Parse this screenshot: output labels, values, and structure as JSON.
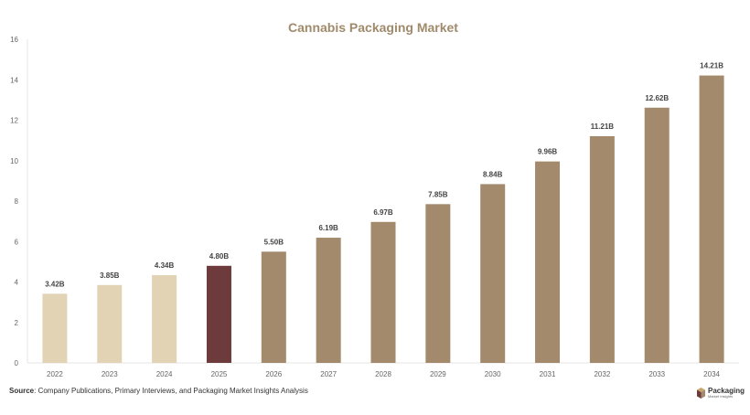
{
  "colors": {
    "title": "#a08a6b",
    "historical": "#e3d3b5",
    "base_year": "#6d3b3b",
    "forecast": "#a38a6c",
    "axis_text": "#666666",
    "label_text": "#444444",
    "axis_line": "#e6e6e6"
  },
  "chart_data": {
    "type": "bar",
    "title": "Cannabis Packaging Market",
    "xlabel": "",
    "ylabel": "",
    "categories": [
      "2022",
      "2023",
      "2024",
      "2025",
      "2026",
      "2027",
      "2028",
      "2029",
      "2030",
      "2031",
      "2032",
      "2033",
      "2034"
    ],
    "values": [
      3.42,
      3.85,
      4.34,
      4.8,
      5.5,
      6.19,
      6.97,
      7.85,
      8.84,
      9.96,
      11.21,
      12.62,
      14.21
    ],
    "data_labels": [
      "3.42B",
      "3.85B",
      "4.34B",
      "4.80B",
      "5.50B",
      "6.19B",
      "6.97B",
      "7.85B",
      "8.84B",
      "9.96B",
      "11.21B",
      "12.62B",
      "14.21B"
    ],
    "bar_color_groups": [
      "historical",
      "historical",
      "historical",
      "base_year",
      "forecast",
      "forecast",
      "forecast",
      "forecast",
      "forecast",
      "forecast",
      "forecast",
      "forecast",
      "forecast"
    ],
    "ylim": [
      0,
      16
    ],
    "yticks": [
      0,
      2,
      4,
      6,
      8,
      10,
      12,
      14,
      16
    ],
    "grid": false,
    "legend": "none"
  },
  "footer": {
    "source_label": "Source",
    "source_text": ": Company Publications, Primary Interviews, and Packaging Market Insights Analysis"
  },
  "logo": {
    "name": "Packaging",
    "tagline": "Market Insights"
  }
}
